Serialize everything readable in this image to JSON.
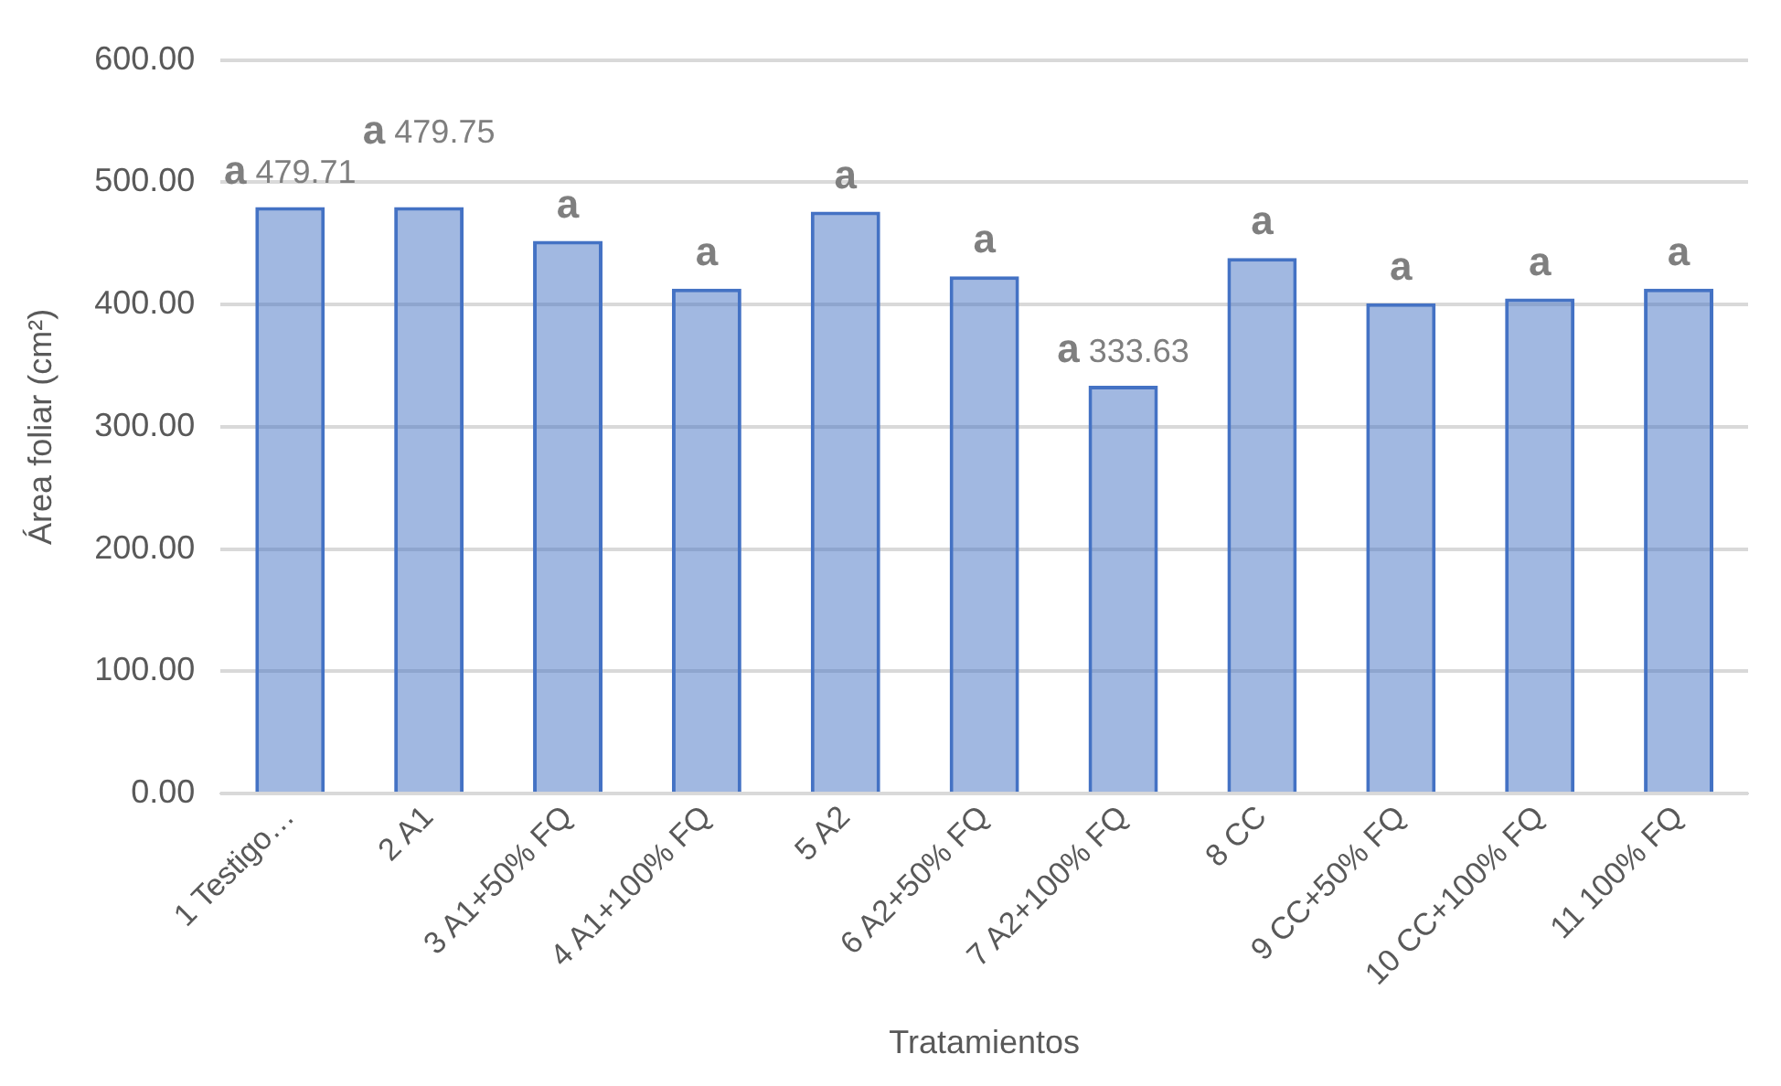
{
  "chart_data": {
    "type": "bar",
    "ylabel": "Área foliar (cm²)",
    "xlabel": "Tratamientos",
    "categories": [
      "1 Testigo…",
      "2 A1",
      "3 A1+50% FQ",
      "4 A1+100% FQ",
      "5 A2",
      "6 A2+50% FQ",
      "7 A2+100% FQ",
      "8 CC",
      "9 CC+50% FQ",
      "10 CC+100% FQ",
      "11 100% FQ"
    ],
    "values": [
      479.71,
      479.75,
      452,
      413,
      476,
      423,
      333.63,
      438,
      401,
      405,
      413
    ],
    "value_labels": [
      "a 479.71",
      "a 479.75",
      "a",
      "a",
      "a",
      "a",
      "a 333.63",
      "a",
      "a",
      "a",
      "a"
    ],
    "color": "#4472c4",
    "ylim": [
      0,
      600
    ],
    "yticks": [
      {
        "value": 0,
        "label": "0.00"
      },
      {
        "value": 100,
        "label": "100.00"
      },
      {
        "value": 200,
        "label": "200.00"
      },
      {
        "value": 300,
        "label": "300.00"
      },
      {
        "value": 400,
        "label": "400.00"
      },
      {
        "value": 500,
        "label": "500.00"
      },
      {
        "value": 600,
        "label": "600.00"
      }
    ],
    "grid": "y",
    "legend": false
  }
}
